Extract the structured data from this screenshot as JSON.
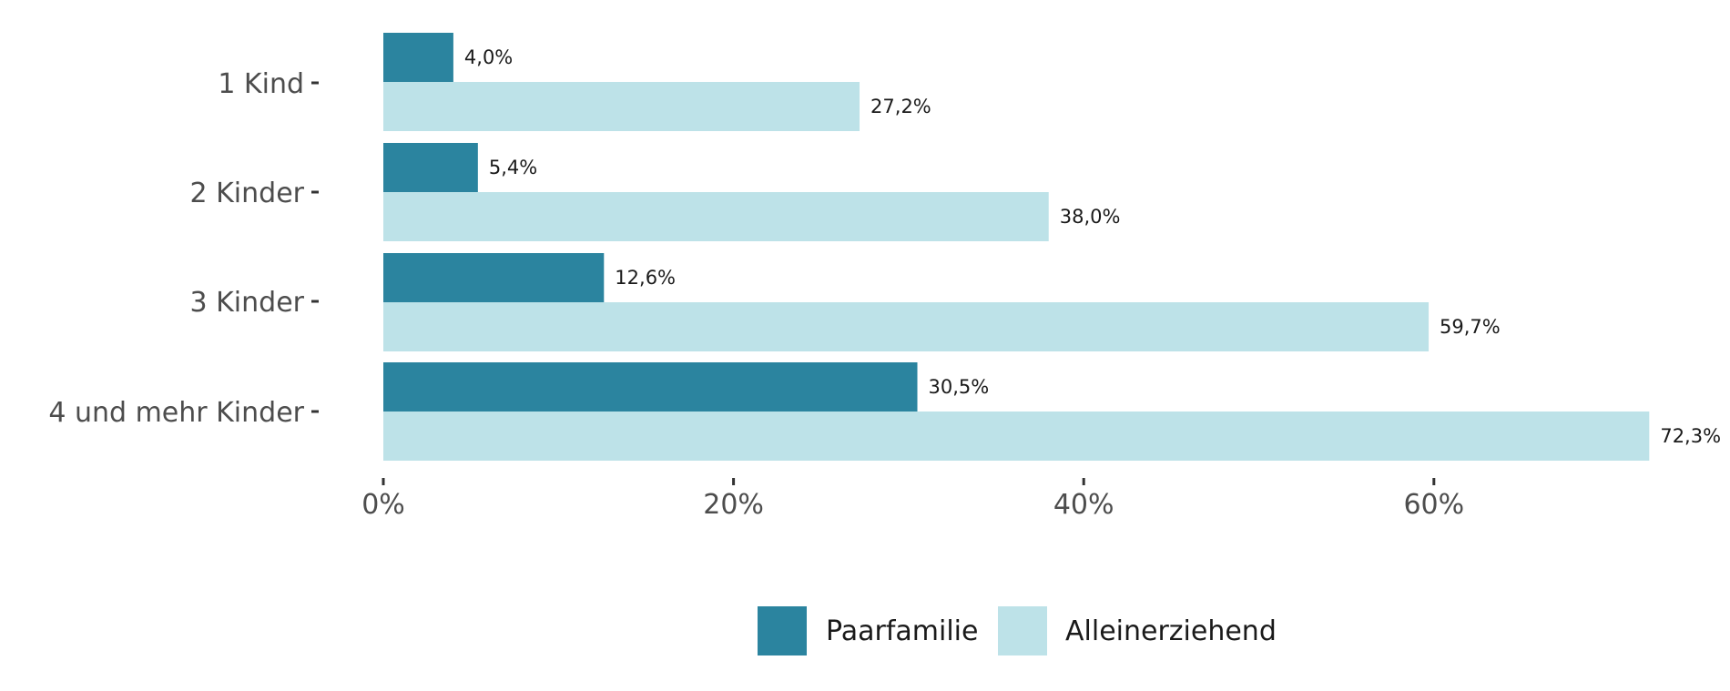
{
  "chart_data": {
    "type": "bar",
    "orientation": "horizontal",
    "categories": [
      "1 Kind",
      "2 Kinder",
      "3 Kinder",
      "4 und mehr Kinder"
    ],
    "series": [
      {
        "name": "Paarfamilie",
        "values": [
          4.0,
          5.4,
          12.6,
          30.5
        ],
        "labels": [
          "4,0%",
          "5,4%",
          "12,6%",
          "30,5%"
        ],
        "color": "#2b849f"
      },
      {
        "name": "Alleinerziehend",
        "values": [
          27.2,
          38.0,
          59.7,
          72.3
        ],
        "labels": [
          "27,2%",
          "38,0%",
          "59,7%",
          "72,3%"
        ],
        "color": "#bde2e8"
      }
    ],
    "xticks": [
      "0%",
      "20%",
      "40%",
      "60%"
    ],
    "xlim": [
      0,
      72.3
    ],
    "grid": false,
    "legend_position": "bottom"
  }
}
